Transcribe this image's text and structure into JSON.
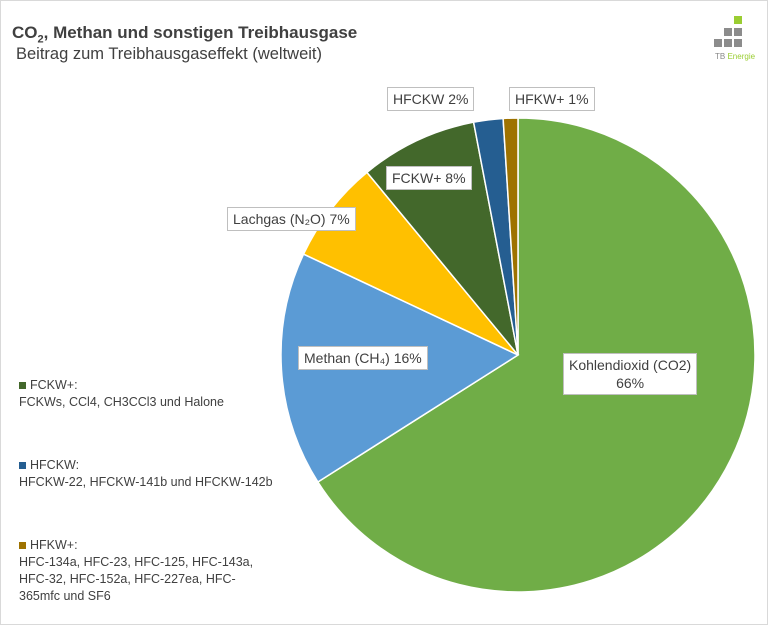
{
  "title": {
    "main_prefix": "CO",
    "main_sub": "2",
    "main_rest": ", Methan und sonstigen Treibhausgase",
    "subtitle": "Beitrag zum Treibhausgaseffekt (weltweit)"
  },
  "logo": {
    "part1": "TB",
    "part2": "Energie"
  },
  "chart_data": {
    "type": "pie",
    "start": "top",
    "direction": "clockwise",
    "slices": [
      {
        "label": "Kohlendioxid (CO2)",
        "value": 66,
        "display": "66%",
        "color": "#70AD47"
      },
      {
        "label": "Methan (CH₄)",
        "value": 16,
        "display": "16%",
        "color": "#5B9BD5"
      },
      {
        "label": "Lachgas (N₂O)",
        "value": 7,
        "display": "7%",
        "color": "#FFC000"
      },
      {
        "label": "FCKW+",
        "value": 8,
        "display": "8%",
        "color": "#43682B"
      },
      {
        "label": "HFCKW",
        "value": 2,
        "display": "2%",
        "color": "#255E91"
      },
      {
        "label": "HFKW+",
        "value": 1,
        "display": "1%",
        "color": "#9E7200"
      }
    ]
  },
  "labels": {
    "co2_line1": "Kohlendioxid (CO2)",
    "co2_line2": "66%",
    "methan": "Methan (CH₄) 16%",
    "lachgas": "Lachgas (N₂O) 7%",
    "fckw": "FCKW+ 8%",
    "hfckw": "HFCKW 2%",
    "hfkw": "HFKW+ 1%"
  },
  "legend": [
    {
      "name": "FCKW+:",
      "desc": "FCKWs, CCl4, CH3CCl3 und Halone",
      "color": "#43682B"
    },
    {
      "name": "HFCKW:",
      "desc": "HFCKW-22, HFCKW-141b und HFCKW-142b",
      "color": "#255E91"
    },
    {
      "name": "HFKW+:",
      "desc": "HFC-134a, HFC-23, HFC-125, HFC-143a, HFC-32, HFC-152a, HFC-227ea, HFC-365mfc und SF6",
      "color": "#9E7200"
    }
  ]
}
